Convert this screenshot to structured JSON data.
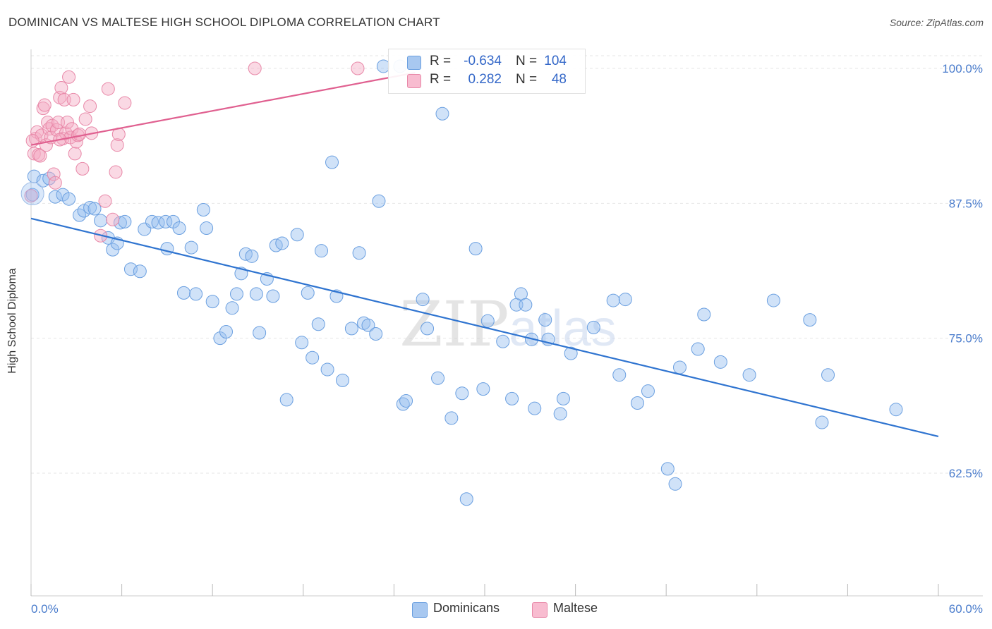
{
  "title": "DOMINICAN VS MALTESE HIGH SCHOOL DIPLOMA CORRELATION CHART",
  "source": "Source: ZipAtlas.com",
  "watermark": "ZIPatlas",
  "legend": {
    "rows": [
      {
        "r_label": "R =",
        "r_value": "-0.634",
        "n_label": "N =",
        "n_value": "104",
        "color": "#a8c8f0",
        "border": "#6a9fe0"
      },
      {
        "r_label": "R =",
        "r_value": "0.282",
        "n_label": "N =",
        "n_value": "48",
        "color": "#f8bcd0",
        "border": "#e888a8"
      }
    ]
  },
  "bottom_legend": [
    {
      "label": "Dominicans",
      "color": "#a8c8f0",
      "border": "#6a9fe0"
    },
    {
      "label": "Maltese",
      "color": "#f8bcd0",
      "border": "#e888a8"
    }
  ],
  "chart_data": {
    "type": "scatter",
    "title": "DOMINICAN VS MALTESE HIGH SCHOOL DIPLOMA CORRELATION CHART",
    "xlabel": "",
    "ylabel": "High School Diploma",
    "xlim": [
      0,
      60
    ],
    "ylim": [
      50,
      101
    ],
    "x_tick_labels": [
      "0.0%",
      "60.0%"
    ],
    "y_ticks": [
      62.5,
      75.0,
      87.5,
      100.0
    ],
    "y_tick_labels": [
      "62.5%",
      "75.0%",
      "87.5%",
      "100.0%"
    ],
    "grid": true,
    "legend_position": "top-center",
    "series": [
      {
        "name": "Dominicans",
        "color": "#6a9fe0",
        "fill": "rgba(150,190,240,0.45)",
        "trend": {
          "x": [
            0,
            60
          ],
          "y": [
            86.1,
            65.9
          ],
          "color": "#2f74d0"
        },
        "points": [
          [
            0.1,
            88.3
          ],
          [
            0.2,
            90.0
          ],
          [
            0.8,
            89.6
          ],
          [
            1.2,
            89.8
          ],
          [
            1.6,
            88.1
          ],
          [
            2.1,
            88.3
          ],
          [
            2.5,
            87.9
          ],
          [
            3.2,
            86.4
          ],
          [
            3.5,
            86.8
          ],
          [
            3.9,
            87.1
          ],
          [
            4.2,
            87.0
          ],
          [
            4.6,
            85.9
          ],
          [
            5.1,
            84.3
          ],
          [
            5.4,
            83.2
          ],
          [
            5.7,
            83.8
          ],
          [
            5.9,
            85.7
          ],
          [
            6.2,
            85.8
          ],
          [
            6.6,
            81.4
          ],
          [
            7.2,
            81.2
          ],
          [
            7.5,
            85.1
          ],
          [
            8.0,
            85.8
          ],
          [
            8.4,
            85.7
          ],
          [
            8.9,
            85.8
          ],
          [
            9.0,
            83.3
          ],
          [
            9.4,
            85.8
          ],
          [
            9.8,
            85.2
          ],
          [
            10.1,
            79.2
          ],
          [
            10.6,
            83.4
          ],
          [
            10.9,
            79.1
          ],
          [
            11.4,
            86.9
          ],
          [
            11.6,
            85.2
          ],
          [
            12.0,
            78.4
          ],
          [
            12.5,
            75.0
          ],
          [
            12.9,
            75.6
          ],
          [
            13.3,
            77.8
          ],
          [
            13.6,
            79.1
          ],
          [
            13.9,
            81.0
          ],
          [
            14.2,
            82.8
          ],
          [
            14.6,
            82.6
          ],
          [
            14.9,
            79.1
          ],
          [
            15.1,
            75.5
          ],
          [
            15.6,
            80.5
          ],
          [
            16.0,
            78.9
          ],
          [
            16.2,
            83.6
          ],
          [
            16.6,
            83.8
          ],
          [
            16.9,
            69.3
          ],
          [
            17.6,
            84.6
          ],
          [
            17.9,
            74.6
          ],
          [
            18.3,
            79.2
          ],
          [
            18.6,
            73.2
          ],
          [
            19.0,
            76.3
          ],
          [
            19.2,
            83.1
          ],
          [
            19.6,
            72.1
          ],
          [
            19.9,
            91.3
          ],
          [
            20.2,
            78.9
          ],
          [
            20.6,
            71.1
          ],
          [
            21.2,
            75.9
          ],
          [
            21.7,
            82.9
          ],
          [
            22.0,
            76.4
          ],
          [
            22.3,
            76.2
          ],
          [
            22.8,
            75.4
          ],
          [
            23.0,
            87.7
          ],
          [
            23.3,
            100.2
          ],
          [
            24.4,
            100.2
          ],
          [
            24.6,
            68.9
          ],
          [
            24.8,
            69.2
          ],
          [
            25.9,
            78.6
          ],
          [
            26.2,
            75.9
          ],
          [
            26.9,
            71.3
          ],
          [
            27.2,
            95.8
          ],
          [
            27.8,
            67.6
          ],
          [
            28.5,
            69.9
          ],
          [
            28.8,
            60.1
          ],
          [
            29.4,
            83.3
          ],
          [
            29.9,
            70.3
          ],
          [
            30.2,
            76.6
          ],
          [
            31.2,
            74.7
          ],
          [
            31.8,
            69.4
          ],
          [
            32.1,
            78.1
          ],
          [
            32.4,
            79.1
          ],
          [
            32.7,
            78.1
          ],
          [
            33.1,
            74.9
          ],
          [
            33.3,
            68.5
          ],
          [
            34.0,
            76.7
          ],
          [
            34.2,
            74.9
          ],
          [
            35.0,
            68.0
          ],
          [
            35.2,
            69.4
          ],
          [
            35.7,
            73.6
          ],
          [
            37.2,
            76.0
          ],
          [
            38.5,
            78.5
          ],
          [
            38.9,
            71.6
          ],
          [
            39.3,
            78.6
          ],
          [
            40.1,
            69.0
          ],
          [
            40.8,
            70.1
          ],
          [
            42.1,
            62.9
          ],
          [
            42.6,
            61.5
          ],
          [
            42.9,
            72.3
          ],
          [
            44.1,
            74.0
          ],
          [
            44.5,
            77.2
          ],
          [
            45.6,
            72.8
          ],
          [
            47.5,
            71.6
          ],
          [
            49.1,
            78.5
          ],
          [
            51.5,
            76.7
          ],
          [
            52.3,
            67.2
          ],
          [
            52.7,
            71.6
          ],
          [
            57.2,
            68.4
          ]
        ]
      },
      {
        "name": "Maltese",
        "color": "#e888a8",
        "fill": "rgba(245,170,195,0.45)",
        "trend": {
          "x": [
            0,
            25.4
          ],
          "y": [
            92.9,
            99.6
          ],
          "color": "#e06090"
        },
        "points": [
          [
            0.0,
            88.2
          ],
          [
            0.2,
            92.1
          ],
          [
            0.3,
            93.5
          ],
          [
            0.4,
            94.1
          ],
          [
            0.5,
            92.0
          ],
          [
            0.6,
            91.9
          ],
          [
            0.7,
            93.8
          ],
          [
            0.8,
            96.3
          ],
          [
            0.9,
            96.6
          ],
          [
            1.0,
            92.9
          ],
          [
            1.1,
            95.0
          ],
          [
            1.2,
            94.4
          ],
          [
            1.3,
            93.6
          ],
          [
            1.4,
            94.7
          ],
          [
            1.5,
            90.2
          ],
          [
            1.6,
            89.4
          ],
          [
            1.7,
            94.3
          ],
          [
            1.8,
            95.0
          ],
          [
            1.9,
            97.3
          ],
          [
            2.0,
            98.2
          ],
          [
            2.1,
            93.5
          ],
          [
            2.2,
            97.1
          ],
          [
            2.3,
            94.0
          ],
          [
            2.4,
            95.0
          ],
          [
            2.5,
            99.2
          ],
          [
            2.6,
            93.6
          ],
          [
            2.7,
            94.4
          ],
          [
            2.8,
            97.1
          ],
          [
            2.9,
            92.1
          ],
          [
            3.0,
            93.2
          ],
          [
            3.1,
            93.8
          ],
          [
            3.2,
            93.9
          ],
          [
            3.4,
            90.7
          ],
          [
            3.6,
            95.3
          ],
          [
            3.9,
            96.5
          ],
          [
            4.6,
            84.5
          ],
          [
            4.9,
            87.7
          ],
          [
            5.1,
            98.1
          ],
          [
            5.4,
            86.0
          ],
          [
            5.6,
            90.4
          ],
          [
            5.7,
            92.9
          ],
          [
            5.8,
            93.9
          ],
          [
            6.2,
            96.8
          ],
          [
            14.8,
            100.0
          ],
          [
            21.6,
            100.0
          ],
          [
            0.1,
            93.3
          ],
          [
            1.9,
            93.4
          ],
          [
            4.0,
            94.0
          ]
        ]
      }
    ]
  }
}
